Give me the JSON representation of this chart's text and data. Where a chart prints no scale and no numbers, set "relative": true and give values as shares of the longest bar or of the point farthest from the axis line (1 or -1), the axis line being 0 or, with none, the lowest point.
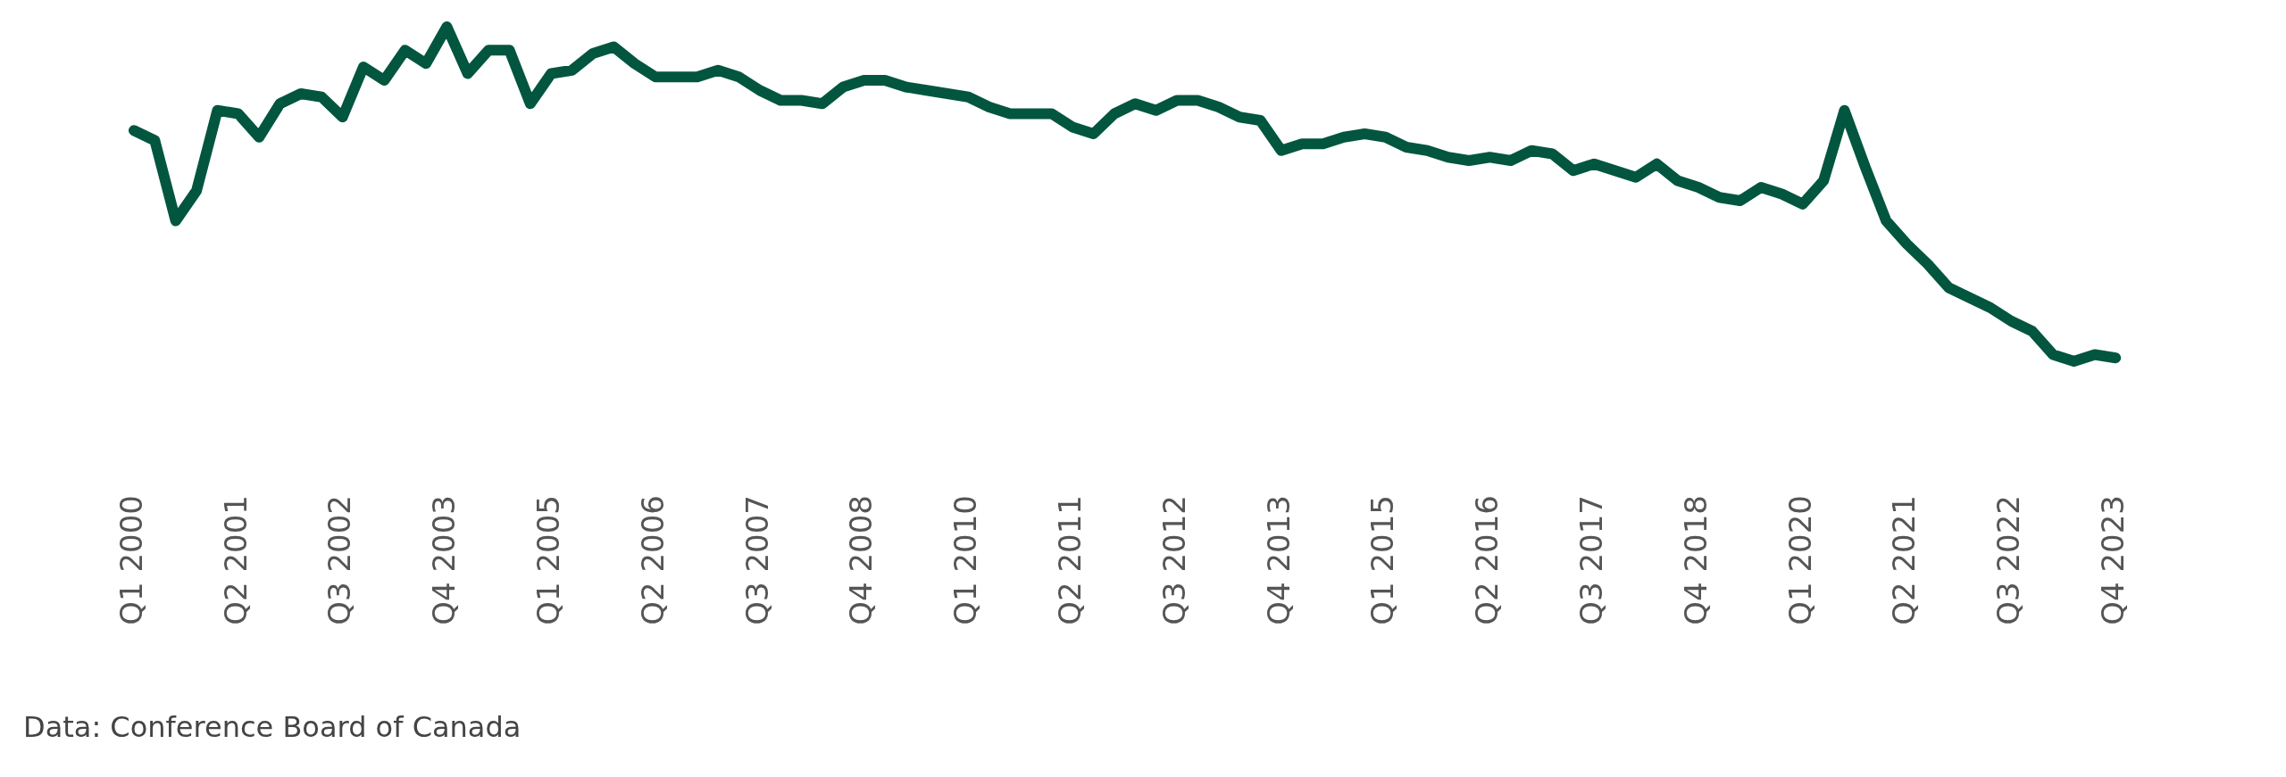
{
  "chart_data": {
    "type": "line",
    "relative": true,
    "categories": [
      "Q1 2000",
      null,
      null,
      null,
      null,
      "Q2 2001",
      null,
      null,
      null,
      null,
      "Q3 2002",
      null,
      null,
      null,
      null,
      "Q4 2003",
      null,
      null,
      null,
      null,
      "Q1 2005",
      null,
      null,
      null,
      null,
      "Q2 2006",
      null,
      null,
      null,
      null,
      "Q3 2007",
      null,
      null,
      null,
      null,
      "Q4 2008",
      null,
      null,
      null,
      null,
      "Q1 2010",
      null,
      null,
      null,
      null,
      "Q2 2011",
      null,
      null,
      null,
      null,
      "Q3 2012",
      null,
      null,
      null,
      null,
      "Q4 2013",
      null,
      null,
      null,
      null,
      "Q1 2015",
      null,
      null,
      null,
      null,
      "Q2 2016",
      null,
      null,
      null,
      null,
      "Q3 2017",
      null,
      null,
      null,
      null,
      "Q4 2018",
      null,
      null,
      null,
      null,
      "Q1 2020",
      null,
      null,
      null,
      null,
      "Q2 2021",
      null,
      null,
      null,
      null,
      "Q3 2022",
      null,
      null,
      null,
      null,
      "Q4 2023"
    ],
    "series": [
      {
        "color": "#02563f",
        "values": [
          0.69,
          0.66,
          0.42,
          0.51,
          0.75,
          0.74,
          0.67,
          0.77,
          0.8,
          0.79,
          0.73,
          0.88,
          0.84,
          0.93,
          0.89,
          1.0,
          0.86,
          0.93,
          0.93,
          0.77,
          0.86,
          0.87,
          0.92,
          0.94,
          0.89,
          0.85,
          0.85,
          0.85,
          0.87,
          0.85,
          0.81,
          0.78,
          0.78,
          0.77,
          0.82,
          0.84,
          0.84,
          0.82,
          0.81,
          0.8,
          0.79,
          0.76,
          0.74,
          0.74,
          0.74,
          0.7,
          0.68,
          0.74,
          0.77,
          0.75,
          0.78,
          0.78,
          0.76,
          0.73,
          0.72,
          0.63,
          0.65,
          0.65,
          0.67,
          0.68,
          0.67,
          0.64,
          0.63,
          0.61,
          0.6,
          0.61,
          0.6,
          0.63,
          0.62,
          0.57,
          0.59,
          0.57,
          0.55,
          0.59,
          0.54,
          0.52,
          0.49,
          0.48,
          0.52,
          0.5,
          0.47,
          0.54,
          0.75,
          0.58,
          0.42,
          0.35,
          0.29,
          0.22,
          0.19,
          0.16,
          0.12,
          0.09,
          0.02,
          0,
          0.02,
          0.01
        ]
      }
    ],
    "annotations": [
      "Data: Conference Board of Canada"
    ]
  }
}
